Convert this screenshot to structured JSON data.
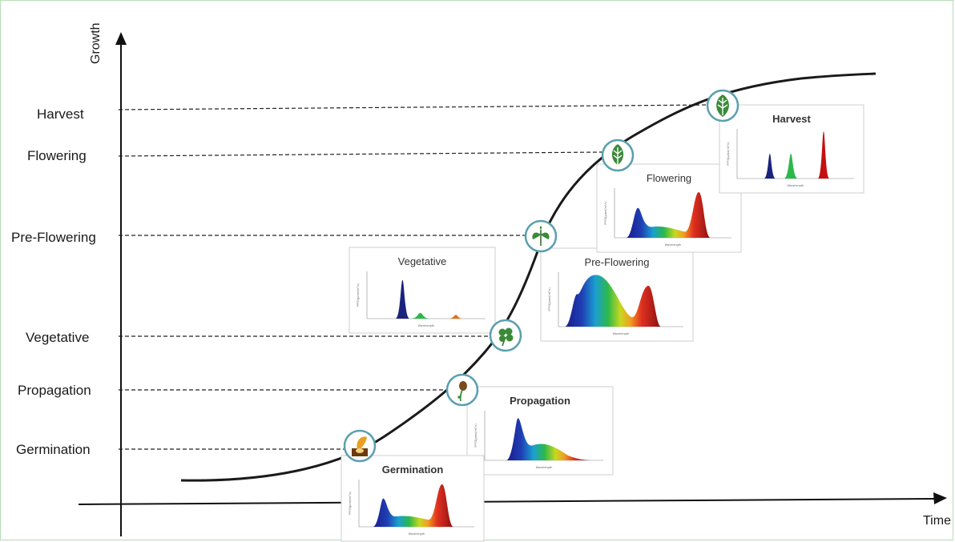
{
  "axes": {
    "y_label": "Growth",
    "x_label": "Time"
  },
  "stages": [
    {
      "key": "germination",
      "label": "Germination",
      "panel_title": "Germination",
      "icon": "seed-sprout-icon"
    },
    {
      "key": "propagation",
      "label": "Propagation",
      "panel_title": "Propagation",
      "icon": "seedling-icon"
    },
    {
      "key": "vegetative",
      "label": "Vegetative",
      "panel_title": "Vegetative",
      "icon": "clover-leaf-icon"
    },
    {
      "key": "preflowering",
      "label": "Pre-Flowering",
      "panel_title": "Pre-Flowering",
      "icon": "plant-icon"
    },
    {
      "key": "flowering",
      "label": "Flowering",
      "panel_title": "Flowering",
      "icon": "leaf-icon"
    },
    {
      "key": "harvest",
      "label": "Harvest",
      "panel_title": "Harvest",
      "icon": "harvest-leaf-icon"
    }
  ],
  "spectrum_axis": {
    "x_label": "Wavelength",
    "y_label": "PPFD(μmol/m²/s)"
  },
  "colors": {
    "curve": "#1a1a1a",
    "icon_ring": "#5b9fb0",
    "icon_green": "#3a8a3a",
    "frame": "#b7dcb7"
  }
}
